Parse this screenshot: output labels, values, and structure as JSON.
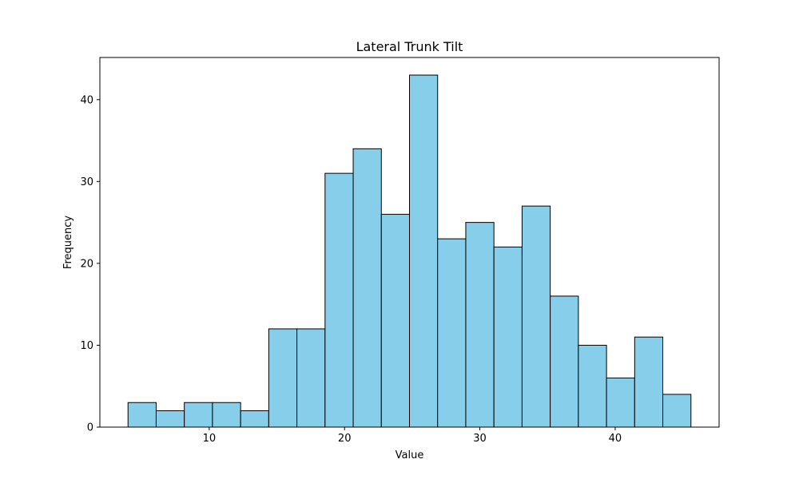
{
  "chart_data": {
    "type": "bar",
    "title": "Lateral Trunk Tilt",
    "xlabel": "Value",
    "ylabel": "Frequency",
    "bin_edges": [
      4.0,
      6.08,
      8.16,
      10.24,
      12.32,
      14.4,
      16.48,
      18.56,
      20.64,
      22.72,
      24.8,
      26.88,
      28.96,
      31.04,
      33.12,
      35.2,
      37.28,
      39.36,
      41.44,
      43.52,
      45.6
    ],
    "values": [
      3,
      2,
      3,
      3,
      2,
      12,
      12,
      31,
      34,
      26,
      43,
      23,
      25,
      22,
      27,
      16,
      10,
      6,
      11,
      4
    ],
    "xlim": [
      1.92,
      47.68
    ],
    "ylim": [
      0,
      45.15
    ],
    "x_ticks": [
      10,
      20,
      30,
      40
    ],
    "y_ticks": [
      0,
      10,
      20,
      30,
      40
    ],
    "grid": false,
    "bar_color": "#87CEEB",
    "edge_color": "#000000"
  }
}
